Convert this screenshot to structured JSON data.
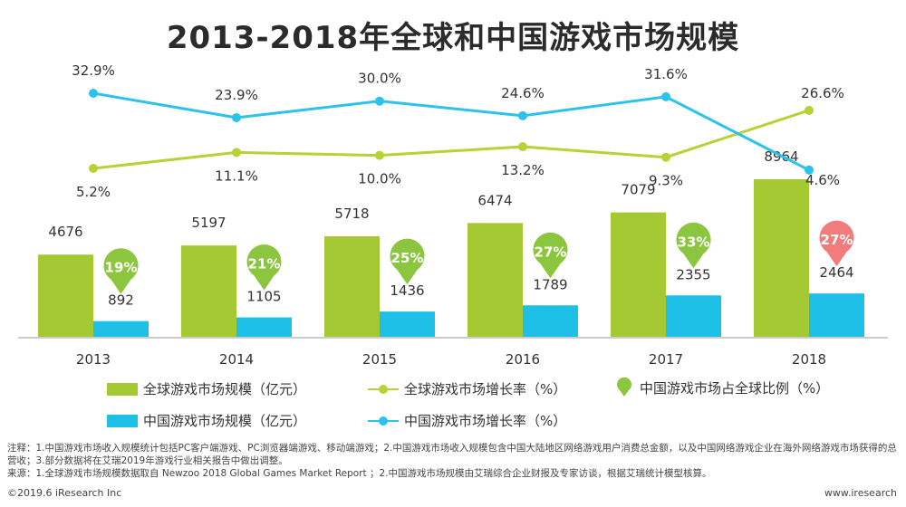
{
  "colors": {
    "green": "#a5c932",
    "blue": "#1ec0e8",
    "pin_green": "#8cc63f",
    "pin_red": "#f27b7b",
    "line_green": "#b5d334",
    "line_blue": "#2cc2ee"
  },
  "chart_data": {
    "type": "bar",
    "title": "2013-2018年全球和中国游戏市场规模",
    "categories": [
      "2013",
      "2014",
      "2015",
      "2016",
      "2017",
      "2018"
    ],
    "series": [
      {
        "name": "全球游戏市场规模（亿元）",
        "type": "bar",
        "values": [
          4676,
          5197,
          5718,
          6474,
          7079,
          8964
        ],
        "labels": [
          "4676",
          "5197",
          "5718",
          "6474",
          "7079",
          "8964"
        ]
      },
      {
        "name": "中国游戏市场规模（亿元）",
        "type": "bar",
        "values": [
          892,
          1105,
          1436,
          1789,
          2355,
          2464
        ],
        "labels": [
          "892",
          "1105",
          "1436",
          "1789",
          "2355",
          "2464"
        ]
      },
      {
        "name": "全球游戏市场增长率（%）",
        "type": "line",
        "values": [
          5.2,
          11.1,
          10.0,
          13.2,
          9.3,
          26.6
        ],
        "labels": [
          "5.2%",
          "11.1%",
          "10.0%",
          "13.2%",
          "9.3%",
          "26.6%"
        ]
      },
      {
        "name": "中国游戏市场增长率（%）",
        "type": "line",
        "values": [
          32.9,
          23.9,
          30.0,
          24.6,
          31.6,
          4.6
        ],
        "labels": [
          "32.9%",
          "23.9%",
          "30.0%",
          "24.6%",
          "31.6%",
          "4.6%"
        ]
      },
      {
        "name": "中国游戏市场占全球比例（%）",
        "type": "marker",
        "values": [
          19,
          21,
          25,
          27,
          33,
          27
        ],
        "labels": [
          "19%",
          "21%",
          "25%",
          "27%",
          "33%",
          "27%"
        ],
        "highlight_index": 5
      }
    ],
    "bar_ylim": [
      0,
      9000
    ],
    "line_ylim": [
      0,
      35
    ],
    "grid": false,
    "legend_position": "bottom"
  },
  "legend": [
    {
      "label": "全球游戏市场规模（亿元）",
      "kind": "box",
      "color": "#a5c932"
    },
    {
      "label": "全球游戏市场增长率（%）",
      "kind": "line",
      "color": "#b5d334"
    },
    {
      "label": "中国游戏市场占全球比例（%）",
      "kind": "pin",
      "color": "#8cc63f"
    },
    {
      "label": "中国游戏市场规模（亿元）",
      "kind": "box",
      "color": "#1ec0e8"
    },
    {
      "label": "中国游戏市场增长率（%）",
      "kind": "line",
      "color": "#2cc2ee"
    }
  ],
  "notes": {
    "line1": "注释：1.中国游戏市场收入规模统计包括PC客户端游戏、PC浏览器端游戏、移动端游戏；2.中国游戏市场收入规模包含中国大陆地区网络游戏用户消费总金额，以及中国网络游戏企业在海外网络游戏市场获得的总营收；3.部分数据将在艾瑞2019年游戏行业相关报告中做出调整。",
    "line2": "来源：1.全球游戏市场规模数据取自 Newzoo 2018 Global Games Market Report ；2.中国游戏市场规模由艾瑞综合企业财报及专家访谈，根据艾瑞统计模型核算。"
  },
  "footer": {
    "left": "©2019.6 iResearch Inc",
    "right": "www.iresearch"
  }
}
